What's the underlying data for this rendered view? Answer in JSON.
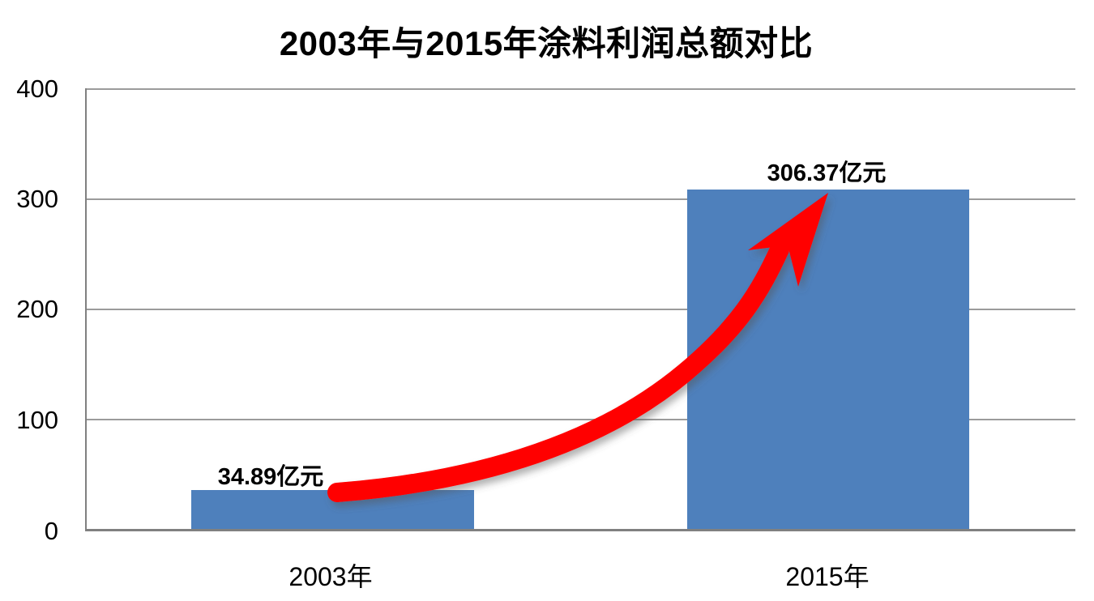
{
  "chart_data": {
    "type": "bar",
    "title": "2003年与2015年涂料利润总额对比",
    "categories": [
      "2003年",
      "2015年"
    ],
    "values": [
      34.89,
      306.37
    ],
    "unit": "亿元",
    "data_labels": [
      "34.89亿元",
      "306.37亿元"
    ],
    "yticks": [
      "400",
      "300",
      "200",
      "100",
      "0"
    ],
    "ylim": [
      0,
      400
    ],
    "grid": true,
    "legend": false,
    "annotations": [
      {
        "type": "curved-growth-arrow",
        "from_category": "2003年",
        "to_category": "2015年",
        "color": "#ff0000"
      }
    ],
    "colors": {
      "bar": "#4e80bc",
      "gridline": "#9b9b9b",
      "axis": "#808080",
      "arrow": "#ff0000",
      "text": "#000000",
      "background": "#ffffff"
    }
  }
}
